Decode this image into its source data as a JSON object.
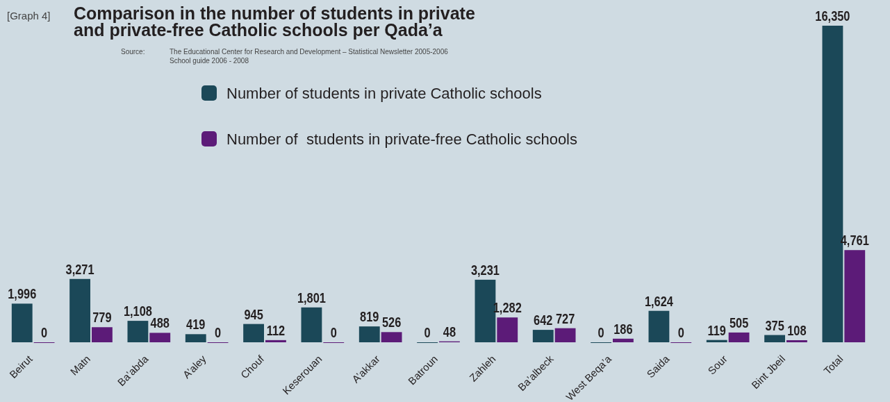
{
  "chart_data": {
    "type": "bar",
    "title": "Comparison in the number of students in private\nand private-free Catholic schools per Qada’a",
    "annotations": [
      "[Graph 4]",
      "Source:",
      "The Educational Center for Research and Development – Statistical Newsletter 2005-2006",
      "School guide 2006 - 2008"
    ],
    "categories": [
      "Beirut",
      "Matn",
      "Ba’abda",
      "A’aley",
      "Chouf",
      "Keserouan",
      "A’akkar",
      "Batroun",
      "Zahleh",
      "Ba’albeck",
      "West Beqa’a",
      "Saida",
      "Sour",
      "Bint Jbeil",
      "Total"
    ],
    "series": [
      {
        "name": "Number of students in private Catholic schools",
        "color": "#1b4858",
        "values": [
          1996,
          3271,
          1108,
          419,
          945,
          1801,
          819,
          0,
          3231,
          642,
          0,
          1624,
          119,
          375,
          16350
        ],
        "value_labels": [
          "1,996",
          "3,271",
          "1,108",
          "419",
          "945",
          "1,801",
          "819",
          "0",
          "3,231",
          "642",
          "0",
          "1,624",
          "119",
          "375",
          "16,350"
        ]
      },
      {
        "name": "Number of  students in private-free Catholic schools",
        "color": "#5c1b78",
        "values": [
          0,
          779,
          488,
          0,
          112,
          0,
          526,
          48,
          1282,
          727,
          186,
          0,
          505,
          108,
          4761
        ],
        "value_labels": [
          "0",
          "779",
          "488",
          "0",
          "112",
          "0",
          "526",
          "48",
          "1,282",
          "727",
          "186",
          "0",
          "505",
          "108",
          "4,761"
        ]
      }
    ],
    "ylim": [
      0,
      16350
    ],
    "tick_labels": "x",
    "legend": "top"
  }
}
